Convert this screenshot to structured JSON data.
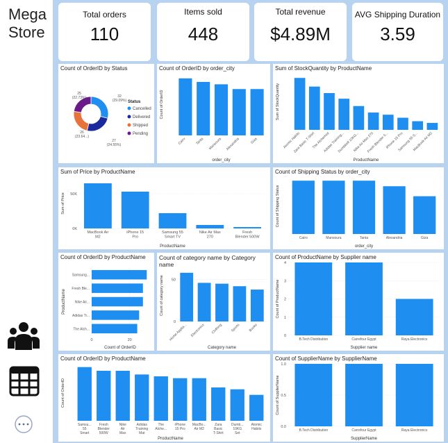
{
  "sidebar": {
    "brand_line1": "Mega",
    "brand_line2": "Store",
    "icons": [
      "users-icon",
      "table-icon",
      "logo-icon"
    ]
  },
  "kpis": [
    {
      "label": "Total orders",
      "value": "110"
    },
    {
      "label": "Items sold",
      "value": "448"
    },
    {
      "label": "Total revenue",
      "value": "$4.89M"
    },
    {
      "label": "AVG Shipping Duration",
      "value": "3.59"
    }
  ],
  "colors": {
    "bar": "#1f8ef1",
    "cancelled": "#1f8ef1",
    "delivered": "#1a2a9c",
    "shipped": "#e8733a",
    "pending": "#6b1a8c"
  },
  "chart_data": [
    {
      "id": "status",
      "type": "pie",
      "title": "Count of OrderID by Status",
      "legend_title": "Status",
      "legend_position": "right",
      "categories": [
        "Cancelled",
        "Delivered",
        "Shipped",
        "Pending"
      ],
      "values": [
        32,
        27,
        26,
        25
      ],
      "data_labels": [
        "32 (29.09%)",
        "27 (24.55%)",
        "26 (23.64...)",
        "25 (22.73%)"
      ]
    },
    {
      "id": "city",
      "type": "bar",
      "title": "Count of OrderID by order_city",
      "xlabel": "order_city",
      "ylabel": "Count of OrderID",
      "categories": [
        "Cairo",
        "Tanta",
        "Mansoura",
        "Alexandria",
        "Giza"
      ],
      "values": [
        24,
        22.5,
        21.5,
        19.5,
        19.5
      ],
      "ylim": [
        0,
        26
      ],
      "show_ticks": false
    },
    {
      "id": "stock",
      "type": "bar",
      "title": "Sum of StockQuantity by ProductName",
      "xlabel": "ProductName",
      "ylabel": "Sum of StockQuantity",
      "categories": [
        "Atomic Habits",
        "Zara Basic T-Shirt",
        "The Alchemist",
        "Adidas Training...",
        "Dumbbell 10KG...",
        "Nike Air Max 270",
        "Fresh Blender 5...",
        "iPhone 15 Pro",
        "Samsung 55 S...",
        "MacBook Air M2"
      ],
      "values": [
        120,
        100,
        85,
        72,
        55,
        40,
        35,
        28,
        20,
        16
      ],
      "ylim": [
        0,
        130
      ],
      "show_ticks": false
    },
    {
      "id": "price",
      "type": "bar",
      "title": "Sum of Price by ProductName",
      "xlabel": "ProductName",
      "ylabel": "Sum of Price",
      "categories": [
        "MacBook Air M2",
        "iPhone 15 Pro",
        "Samsung 55 Smart TV",
        "Nike Air Max 270",
        "Fresh Blender 500W"
      ],
      "values": [
        65000,
        53000,
        22000,
        5000,
        2000
      ],
      "ylim": [
        0,
        72000
      ],
      "yticks": [
        0,
        50000
      ],
      "ytick_labels": [
        "0K",
        "50K"
      ]
    },
    {
      "id": "shipcity",
      "type": "bar",
      "title": "Count of Shipping Status by order_city",
      "xlabel": "order_city",
      "ylabel": "Count of Shipping Status",
      "categories": [
        "Cairo",
        "Mansoura",
        "Tanta",
        "Alexandria",
        "Giza"
      ],
      "values": [
        24,
        24,
        24,
        21.5,
        17
      ],
      "ylim": [
        0,
        25
      ],
      "show_ticks": false
    },
    {
      "id": "orderprod",
      "type": "hbar",
      "title": "Count of OrderID by ProductName",
      "xlabel": "Count of OrderID",
      "ylabel": "ProductName",
      "categories": [
        "Samsung...",
        "Fresh Ble...",
        "Nike Air...",
        "Adidas Tr...",
        "The Alch..."
      ],
      "values": [
        29,
        27,
        27,
        25,
        24
      ],
      "xlim": [
        0,
        30
      ],
      "xticks": [
        0,
        20
      ],
      "xtick_labels": [
        "0",
        "20"
      ]
    },
    {
      "id": "category",
      "type": "bar",
      "title": "Count of category name by Category name",
      "xlabel": "Category name",
      "ylabel": "Count of category name",
      "categories": [
        "Home Applia...",
        "Electronics",
        "Clothing",
        "Sports",
        "Books"
      ],
      "values": [
        58,
        46,
        45,
        42,
        38
      ],
      "ylim": [
        0,
        62
      ],
      "yticks": [
        0,
        50
      ],
      "ytick_labels": [
        "0",
        "50"
      ]
    },
    {
      "id": "supplier",
      "type": "bar",
      "title": "Count of ProductName by Supplier name",
      "xlabel": "Supplier name",
      "ylabel": "Count of ProductName",
      "categories": [
        "B.Tech Distribution",
        "Carrefour Egypt",
        "Raya Electronics"
      ],
      "values": [
        4,
        4,
        2
      ],
      "ylim": [
        0,
        4
      ],
      "yticks": [
        0,
        1,
        2,
        3,
        4
      ],
      "ytick_labels": [
        "0",
        "1",
        "2",
        "3",
        "4"
      ]
    },
    {
      "id": "orderprod2",
      "type": "bar",
      "title": "Count of OrderID by ProductName",
      "xlabel": "ProductName",
      "ylabel": "Count of OrderID",
      "categories": [
        "Samsu... 55 Smart TV",
        "Fresh Blender 500W",
        "Nike Air Max 270",
        "Adidas Training Mat",
        "The Alche...",
        "iPhone 15 Pro",
        "MacBo... Air M2",
        "Zara Basic T-Shirt",
        "Dumb... 10KG Set",
        "Atomic Habits"
      ],
      "values": [
        29,
        27,
        27,
        25,
        24,
        23,
        23,
        18,
        17,
        14
      ],
      "ylim": [
        0,
        30
      ],
      "show_ticks": false
    },
    {
      "id": "suppliername",
      "type": "bar",
      "title": "Count of SupplierName by SupplierName",
      "xlabel": "SupplierName",
      "ylabel": "Count of SupplierName",
      "categories": [
        "B.Tech Distribution",
        "Carrefour Egypt",
        "Raya Electronics"
      ],
      "values": [
        1,
        1,
        1
      ],
      "ylim": [
        0,
        1
      ],
      "yticks": [
        0.0,
        0.5,
        1.0
      ],
      "ytick_labels": [
        "0.0",
        "0.5",
        "1.0"
      ]
    }
  ]
}
